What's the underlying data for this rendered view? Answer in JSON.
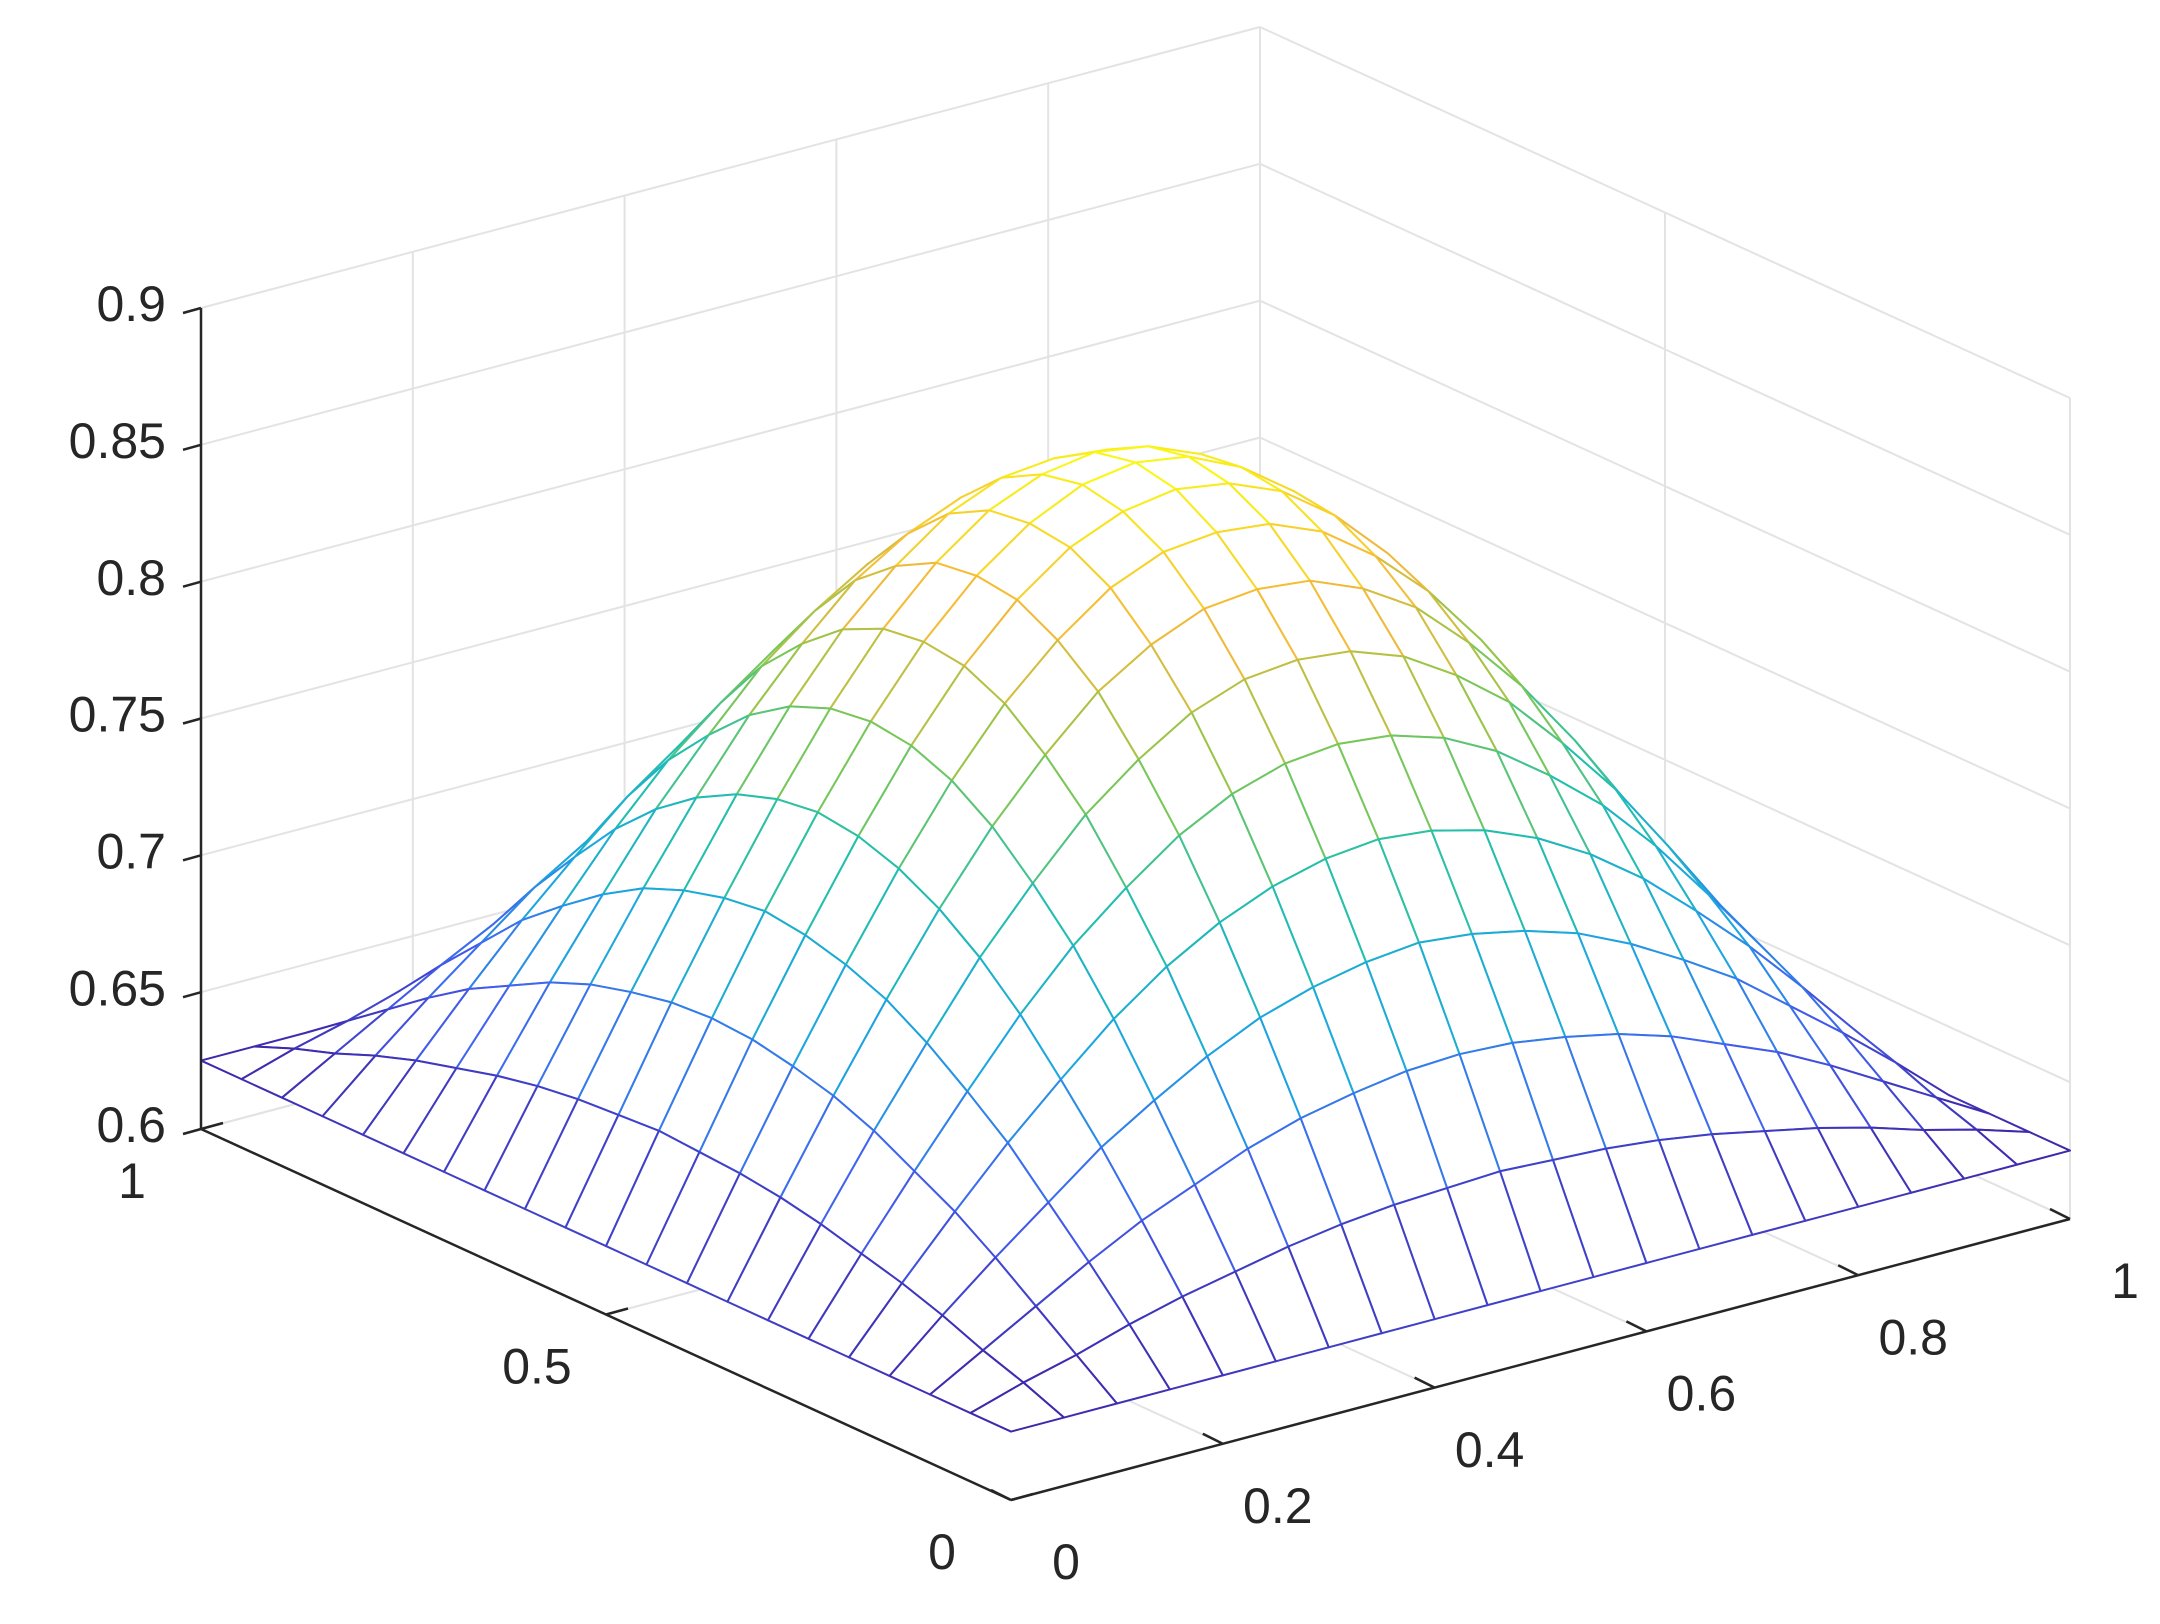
{
  "chart_data": {
    "type": "surface",
    "x": [
      0,
      0.05,
      0.1,
      0.15,
      0.2,
      0.25,
      0.3,
      0.35,
      0.4,
      0.45,
      0.5,
      0.55,
      0.6,
      0.65,
      0.7,
      0.75,
      0.8,
      0.85,
      0.9,
      0.95,
      1
    ],
    "y": [
      0,
      0.05,
      0.1,
      0.15,
      0.2,
      0.25,
      0.3,
      0.35,
      0.4,
      0.45,
      0.5,
      0.55,
      0.6,
      0.65,
      0.7,
      0.75,
      0.8,
      0.85,
      0.9,
      0.95,
      1
    ],
    "z": [
      [
        0.625,
        0.625,
        0.625,
        0.625,
        0.625,
        0.625,
        0.625,
        0.625,
        0.625,
        0.625,
        0.625,
        0.625,
        0.625,
        0.625,
        0.625,
        0.625,
        0.625,
        0.625,
        0.625,
        0.625,
        0.625
      ],
      [
        0.625,
        0.631,
        0.636,
        0.642,
        0.647,
        0.651,
        0.655,
        0.658,
        0.66,
        0.661,
        0.662,
        0.661,
        0.66,
        0.658,
        0.655,
        0.651,
        0.647,
        0.642,
        0.636,
        0.631,
        0.625
      ],
      [
        0.625,
        0.636,
        0.647,
        0.658,
        0.668,
        0.676,
        0.684,
        0.69,
        0.694,
        0.697,
        0.698,
        0.697,
        0.694,
        0.69,
        0.684,
        0.676,
        0.668,
        0.658,
        0.647,
        0.636,
        0.625
      ],
      [
        0.625,
        0.642,
        0.658,
        0.673,
        0.688,
        0.7,
        0.711,
        0.72,
        0.726,
        0.73,
        0.732,
        0.73,
        0.726,
        0.72,
        0.711,
        0.7,
        0.688,
        0.673,
        0.658,
        0.642,
        0.625
      ],
      [
        0.625,
        0.647,
        0.668,
        0.688,
        0.706,
        0.723,
        0.737,
        0.748,
        0.756,
        0.761,
        0.763,
        0.761,
        0.756,
        0.748,
        0.737,
        0.723,
        0.706,
        0.688,
        0.668,
        0.647,
        0.625
      ],
      [
        0.625,
        0.651,
        0.676,
        0.7,
        0.723,
        0.743,
        0.759,
        0.773,
        0.783,
        0.789,
        0.791,
        0.789,
        0.783,
        0.773,
        0.759,
        0.743,
        0.723,
        0.7,
        0.676,
        0.651,
        0.625
      ],
      [
        0.625,
        0.655,
        0.684,
        0.711,
        0.737,
        0.759,
        0.779,
        0.794,
        0.806,
        0.813,
        0.815,
        0.813,
        0.806,
        0.794,
        0.779,
        0.759,
        0.737,
        0.711,
        0.684,
        0.655,
        0.625
      ],
      [
        0.625,
        0.658,
        0.69,
        0.72,
        0.748,
        0.773,
        0.794,
        0.812,
        0.824,
        0.832,
        0.834,
        0.832,
        0.824,
        0.812,
        0.794,
        0.773,
        0.748,
        0.72,
        0.69,
        0.658,
        0.625
      ],
      [
        0.625,
        0.66,
        0.694,
        0.726,
        0.756,
        0.783,
        0.806,
        0.824,
        0.838,
        0.846,
        0.848,
        0.846,
        0.838,
        0.824,
        0.806,
        0.783,
        0.756,
        0.726,
        0.694,
        0.66,
        0.625
      ],
      [
        0.625,
        0.661,
        0.697,
        0.73,
        0.761,
        0.789,
        0.813,
        0.832,
        0.846,
        0.854,
        0.857,
        0.854,
        0.846,
        0.832,
        0.813,
        0.789,
        0.761,
        0.73,
        0.697,
        0.661,
        0.625
      ],
      [
        0.625,
        0.662,
        0.698,
        0.732,
        0.763,
        0.791,
        0.815,
        0.834,
        0.848,
        0.857,
        0.86,
        0.857,
        0.848,
        0.834,
        0.815,
        0.791,
        0.763,
        0.732,
        0.698,
        0.662,
        0.625
      ],
      [
        0.625,
        0.661,
        0.697,
        0.73,
        0.761,
        0.789,
        0.813,
        0.832,
        0.846,
        0.854,
        0.857,
        0.854,
        0.846,
        0.832,
        0.813,
        0.789,
        0.761,
        0.73,
        0.697,
        0.661,
        0.625
      ],
      [
        0.625,
        0.66,
        0.694,
        0.726,
        0.756,
        0.783,
        0.806,
        0.824,
        0.838,
        0.846,
        0.848,
        0.846,
        0.838,
        0.824,
        0.806,
        0.783,
        0.756,
        0.726,
        0.694,
        0.66,
        0.625
      ],
      [
        0.625,
        0.658,
        0.69,
        0.72,
        0.748,
        0.773,
        0.794,
        0.812,
        0.824,
        0.832,
        0.834,
        0.832,
        0.824,
        0.812,
        0.794,
        0.773,
        0.748,
        0.72,
        0.69,
        0.658,
        0.625
      ],
      [
        0.625,
        0.655,
        0.684,
        0.711,
        0.737,
        0.759,
        0.779,
        0.794,
        0.806,
        0.813,
        0.815,
        0.813,
        0.806,
        0.794,
        0.779,
        0.759,
        0.737,
        0.711,
        0.684,
        0.655,
        0.625
      ],
      [
        0.625,
        0.651,
        0.676,
        0.7,
        0.723,
        0.743,
        0.759,
        0.773,
        0.783,
        0.789,
        0.791,
        0.789,
        0.783,
        0.773,
        0.759,
        0.743,
        0.723,
        0.7,
        0.676,
        0.651,
        0.625
      ],
      [
        0.625,
        0.647,
        0.668,
        0.688,
        0.706,
        0.723,
        0.737,
        0.748,
        0.756,
        0.761,
        0.763,
        0.761,
        0.756,
        0.748,
        0.737,
        0.723,
        0.706,
        0.688,
        0.668,
        0.647,
        0.625
      ],
      [
        0.625,
        0.642,
        0.658,
        0.673,
        0.688,
        0.7,
        0.711,
        0.72,
        0.726,
        0.73,
        0.732,
        0.73,
        0.726,
        0.72,
        0.711,
        0.7,
        0.688,
        0.673,
        0.658,
        0.642,
        0.625
      ],
      [
        0.625,
        0.636,
        0.647,
        0.658,
        0.668,
        0.676,
        0.684,
        0.69,
        0.694,
        0.697,
        0.698,
        0.697,
        0.694,
        0.69,
        0.684,
        0.676,
        0.668,
        0.658,
        0.647,
        0.636,
        0.625
      ],
      [
        0.625,
        0.631,
        0.636,
        0.642,
        0.647,
        0.651,
        0.655,
        0.658,
        0.66,
        0.661,
        0.662,
        0.661,
        0.66,
        0.658,
        0.655,
        0.651,
        0.647,
        0.642,
        0.636,
        0.631,
        0.625
      ],
      [
        0.625,
        0.625,
        0.625,
        0.625,
        0.625,
        0.625,
        0.625,
        0.625,
        0.625,
        0.625,
        0.625,
        0.625,
        0.625,
        0.625,
        0.625,
        0.625,
        0.625,
        0.625,
        0.625,
        0.625,
        0.625
      ]
    ],
    "xlim": [
      0,
      1
    ],
    "ylim": [
      0,
      1
    ],
    "zlim": [
      0.6,
      0.9
    ],
    "xticks": [
      0,
      0.2,
      0.4,
      0.6,
      0.8,
      1
    ],
    "yticks": [
      0,
      0.5,
      1
    ],
    "zticks": [
      0.6,
      0.65,
      0.7,
      0.75,
      0.8,
      0.85,
      0.9
    ],
    "grid": true,
    "colormap": [
      "#3e26a8",
      "#4361f0",
      "#1ca6e0",
      "#22bfae",
      "#85c84c",
      "#f5b93a",
      "#f9fb15"
    ]
  }
}
